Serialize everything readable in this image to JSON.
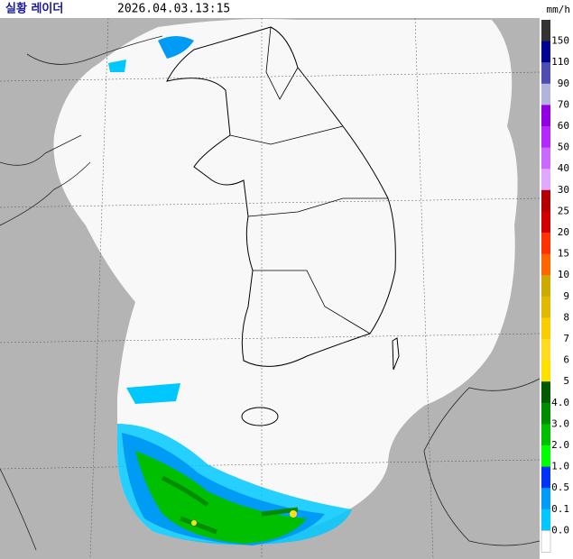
{
  "header": {
    "title": "실황 레이더",
    "timestamp": "2026.04.03.13:15",
    "unit": "mm/h"
  },
  "legend": {
    "labels": [
      "150",
      "110",
      "90",
      "70",
      "60",
      "50",
      "40",
      "30",
      "25",
      "20",
      "15",
      "10",
      "9",
      "8",
      "7",
      "6",
      "5",
      "4.0",
      "3.0",
      "2.0",
      "1.0",
      "0.5",
      "0.1",
      "0.0"
    ],
    "colors": [
      "#333333",
      "#000390",
      "#4c4eb1",
      "#b3b4de",
      "#9300e4",
      "#b329ff",
      "#c969ff",
      "#e0a9ff",
      "#b40000",
      "#d20000",
      "#ff3200",
      "#ff6600",
      "#ccaa00",
      "#e0b900",
      "#f9cd00",
      "#ffdc1f",
      "#ffe100",
      "#005a00",
      "#008c00",
      "#00be00",
      "#00ff00",
      "#0033f5",
      "#009bf5",
      "#00c8ff",
      "#ffffff"
    ]
  }
}
